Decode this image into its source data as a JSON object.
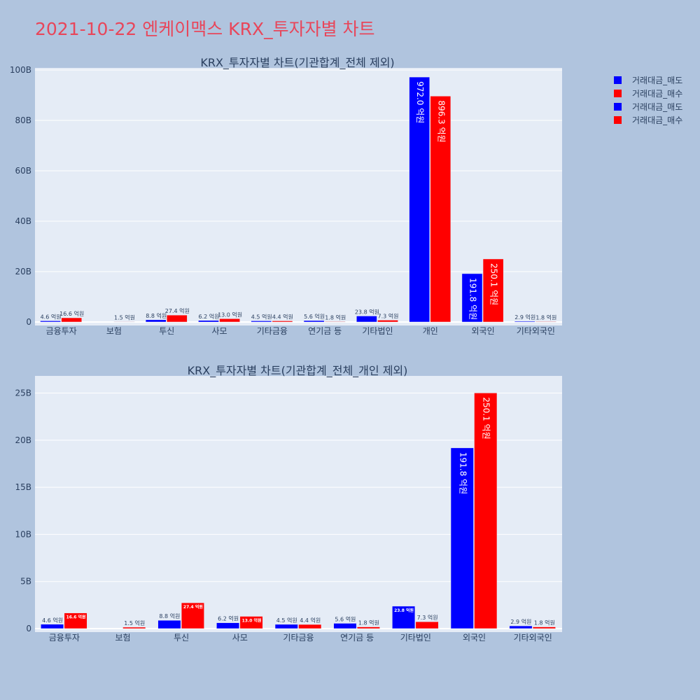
{
  "title": "2021-10-22 엔케이맥스 KRX_투자자별 차트",
  "legend": [
    {
      "name": "거래대금_매도",
      "color": "#0000ff"
    },
    {
      "name": "거래대금_매수",
      "color": "#ff0000"
    },
    {
      "name": "거래대금_매도",
      "color": "#0000ff"
    },
    {
      "name": "거래대금_매수",
      "color": "#ff0000"
    }
  ],
  "chart_data": [
    {
      "type": "bar",
      "title": "KRX_투자자별 차트(기관합계_전체 제외)",
      "categories": [
        "금융투자",
        "보험",
        "투신",
        "사모",
        "기타금융",
        "연기금 등",
        "기타법인",
        "개인",
        "외국인",
        "기타외국인"
      ],
      "ylim": [
        0,
        100
      ],
      "yticks": [
        0,
        20,
        40,
        60,
        80,
        100
      ],
      "ytick_labels": [
        "0",
        "20B",
        "40B",
        "60B",
        "80B",
        "100B"
      ],
      "grid": true,
      "legend_position": "top-right",
      "series": [
        {
          "name": "거래대금_매도",
          "color": "#0000ff",
          "values": [
            0.46,
            0,
            0.88,
            0.62,
            0.45,
            0.56,
            2.38,
            97.2,
            19.18,
            0.29
          ],
          "labels": [
            "4.6 억원",
            "",
            "8.8 억원",
            "6.2 억원",
            "4.5 억원",
            "5.6 억원",
            "23.8 억원",
            "972.0 억원",
            "191.8 억원",
            "2.9 억원"
          ]
        },
        {
          "name": "거래대금_매수",
          "color": "#ff0000",
          "values": [
            1.66,
            0.15,
            2.74,
            1.3,
            0.44,
            0.18,
            0.73,
            89.63,
            25.01,
            0.18
          ],
          "labels": [
            "16.6 억원",
            "1.5 억원",
            "27.4 억원",
            "13.0 억원",
            "4.4 억원",
            "1.8 억원",
            "7.3 억원",
            "896.3 억원",
            "250.1 억원",
            "1.8 억원"
          ]
        }
      ]
    },
    {
      "type": "bar",
      "title": "KRX_투자자별 차트(기관합계_전체_개인 제외)",
      "categories": [
        "금융투자",
        "보험",
        "투신",
        "사모",
        "기타금융",
        "연기금 등",
        "기타법인",
        "외국인",
        "기타외국인"
      ],
      "ylim": [
        0,
        26.6
      ],
      "yticks": [
        0,
        5,
        10,
        15,
        20,
        25
      ],
      "ytick_labels": [
        "0",
        "5B",
        "10B",
        "15B",
        "20B",
        "25B"
      ],
      "grid": true,
      "series": [
        {
          "name": "거래대금_매도",
          "color": "#0000ff",
          "values": [
            0.46,
            0,
            0.88,
            0.62,
            0.45,
            0.56,
            2.38,
            19.18,
            0.29
          ],
          "labels": [
            "4.6 억원",
            "",
            "8.8 억원",
            "6.2 억원",
            "4.5 억원",
            "5.6 억원",
            "23.8 억원",
            "191.8 억원",
            "2.9 억원"
          ]
        },
        {
          "name": "거래대금_매수",
          "color": "#ff0000",
          "values": [
            1.66,
            0.15,
            2.74,
            1.3,
            0.44,
            0.18,
            0.73,
            25.01,
            0.18
          ],
          "labels": [
            "16.6 억원",
            "1.5 억원",
            "27.4 억원",
            "13.0 억원",
            "4.4 억원",
            "1.8 억원",
            "7.3 억원",
            "250.1 억원",
            "1.8 억원"
          ]
        }
      ]
    }
  ]
}
